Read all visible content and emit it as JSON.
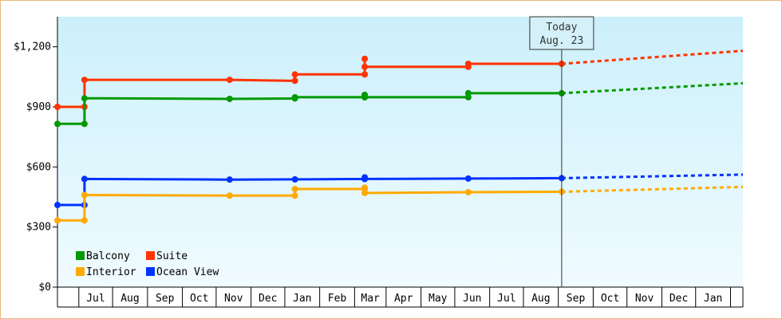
{
  "chart_data": {
    "type": "line",
    "title": "",
    "xlabel": "",
    "ylabel": "",
    "ylim": [
      0,
      1350
    ],
    "yticks": [
      {
        "value": 0,
        "label": "$0"
      },
      {
        "value": 300,
        "label": "$300"
      },
      {
        "value": 600,
        "label": "$600"
      },
      {
        "value": 900,
        "label": "$900"
      },
      {
        "value": 1200,
        "label": "$1,200"
      }
    ],
    "x_domain": [
      "2022-06-01",
      "2024-01-31"
    ],
    "months": [
      {
        "label": "",
        "start": "2022-06-01",
        "end": "2022-06-20"
      },
      {
        "label": "Jul",
        "start": "2022-06-20",
        "end": "2022-07-20"
      },
      {
        "label": "Aug",
        "start": "2022-07-20",
        "end": "2022-08-20"
      },
      {
        "label": "Sep",
        "start": "2022-08-20",
        "end": "2022-09-20"
      },
      {
        "label": "Oct",
        "start": "2022-09-20",
        "end": "2022-10-20"
      },
      {
        "label": "Nov",
        "start": "2022-10-20",
        "end": "2022-11-20"
      },
      {
        "label": "Dec",
        "start": "2022-11-20",
        "end": "2022-12-20"
      },
      {
        "label": "Jan",
        "start": "2022-12-20",
        "end": "2023-01-20"
      },
      {
        "label": "Feb",
        "start": "2023-01-20",
        "end": "2023-02-20"
      },
      {
        "label": "Mar",
        "start": "2023-02-20",
        "end": "2023-03-20"
      },
      {
        "label": "Apr",
        "start": "2023-03-20",
        "end": "2023-04-20"
      },
      {
        "label": "May",
        "start": "2023-04-20",
        "end": "2023-05-20"
      },
      {
        "label": "Jun",
        "start": "2023-05-20",
        "end": "2023-06-20"
      },
      {
        "label": "Jul",
        "start": "2023-06-20",
        "end": "2023-07-20"
      },
      {
        "label": "Aug",
        "start": "2023-07-20",
        "end": "2023-08-20"
      },
      {
        "label": "Sep",
        "start": "2023-08-20",
        "end": "2023-09-20"
      },
      {
        "label": "Oct",
        "start": "2023-09-20",
        "end": "2023-10-20"
      },
      {
        "label": "Nov",
        "start": "2023-10-20",
        "end": "2023-11-20"
      },
      {
        "label": "Dec",
        "start": "2023-11-20",
        "end": "2023-12-20"
      },
      {
        "label": "Jan",
        "start": "2023-12-20",
        "end": "2024-01-20"
      },
      {
        "label": "",
        "start": "2024-01-20",
        "end": "2024-01-31"
      }
    ],
    "today": {
      "date": "2023-08-23",
      "line1": "Today",
      "line2": "Aug. 23"
    },
    "series": [
      {
        "name": "Suite",
        "color": "#ff3300",
        "points": [
          {
            "x": "2022-06-01",
            "y": 900
          },
          {
            "x": "2022-06-25",
            "y": 900
          },
          {
            "x": "2022-06-25",
            "y": 1035
          },
          {
            "x": "2022-11-01",
            "y": 1035
          },
          {
            "x": "2022-12-29",
            "y": 1030
          },
          {
            "x": "2022-12-29",
            "y": 1062
          },
          {
            "x": "2023-03-01",
            "y": 1062
          },
          {
            "x": "2023-03-01",
            "y": 1140
          },
          {
            "x": "2023-03-01",
            "y": 1100
          },
          {
            "x": "2023-06-01",
            "y": 1100
          },
          {
            "x": "2023-06-01",
            "y": 1115
          },
          {
            "x": "2023-08-23",
            "y": 1115
          }
        ],
        "forecast": [
          {
            "x": "2023-08-23",
            "y": 1115
          },
          {
            "x": "2024-01-31",
            "y": 1180
          }
        ]
      },
      {
        "name": "Balcony",
        "color": "#009900",
        "points": [
          {
            "x": "2022-06-01",
            "y": 815
          },
          {
            "x": "2022-06-25",
            "y": 815
          },
          {
            "x": "2022-06-25",
            "y": 943
          },
          {
            "x": "2022-11-01",
            "y": 940
          },
          {
            "x": "2022-12-29",
            "y": 942
          },
          {
            "x": "2022-12-29",
            "y": 948
          },
          {
            "x": "2023-03-01",
            "y": 948
          },
          {
            "x": "2023-03-01",
            "y": 960
          },
          {
            "x": "2023-03-01",
            "y": 948
          },
          {
            "x": "2023-06-01",
            "y": 948
          },
          {
            "x": "2023-06-01",
            "y": 968
          },
          {
            "x": "2023-08-23",
            "y": 968
          }
        ],
        "forecast": [
          {
            "x": "2023-08-23",
            "y": 968
          },
          {
            "x": "2024-01-31",
            "y": 1018
          }
        ]
      },
      {
        "name": "Ocean View",
        "color": "#0033ff",
        "points": [
          {
            "x": "2022-06-01",
            "y": 410
          },
          {
            "x": "2022-06-25",
            "y": 410
          },
          {
            "x": "2022-06-25",
            "y": 540
          },
          {
            "x": "2022-11-01",
            "y": 537
          },
          {
            "x": "2022-12-29",
            "y": 538
          },
          {
            "x": "2023-03-01",
            "y": 540
          },
          {
            "x": "2023-03-01",
            "y": 548
          },
          {
            "x": "2023-03-01",
            "y": 540
          },
          {
            "x": "2023-06-01",
            "y": 542
          },
          {
            "x": "2023-08-23",
            "y": 544
          }
        ],
        "forecast": [
          {
            "x": "2023-08-23",
            "y": 544
          },
          {
            "x": "2024-01-31",
            "y": 562
          }
        ]
      },
      {
        "name": "Interior",
        "color": "#ffaa00",
        "points": [
          {
            "x": "2022-06-01",
            "y": 333
          },
          {
            "x": "2022-06-25",
            "y": 333
          },
          {
            "x": "2022-06-25",
            "y": 460
          },
          {
            "x": "2022-11-01",
            "y": 457
          },
          {
            "x": "2022-12-29",
            "y": 457
          },
          {
            "x": "2022-12-29",
            "y": 490
          },
          {
            "x": "2023-03-01",
            "y": 490
          },
          {
            "x": "2023-03-01",
            "y": 497
          },
          {
            "x": "2023-03-01",
            "y": 470
          },
          {
            "x": "2023-06-01",
            "y": 474
          },
          {
            "x": "2023-08-23",
            "y": 476
          }
        ],
        "forecast": [
          {
            "x": "2023-08-23",
            "y": 476
          },
          {
            "x": "2024-01-31",
            "y": 500
          }
        ]
      }
    ],
    "legend": [
      {
        "name": "Balcony",
        "color": "#009900"
      },
      {
        "name": "Suite",
        "color": "#ff3300"
      },
      {
        "name": "Interior",
        "color": "#ffaa00"
      },
      {
        "name": "Ocean View",
        "color": "#0033ff"
      }
    ],
    "legend_placement": "bottom-left",
    "background_gradient": [
      "#ccf0fb",
      "#f0fbff"
    ]
  }
}
